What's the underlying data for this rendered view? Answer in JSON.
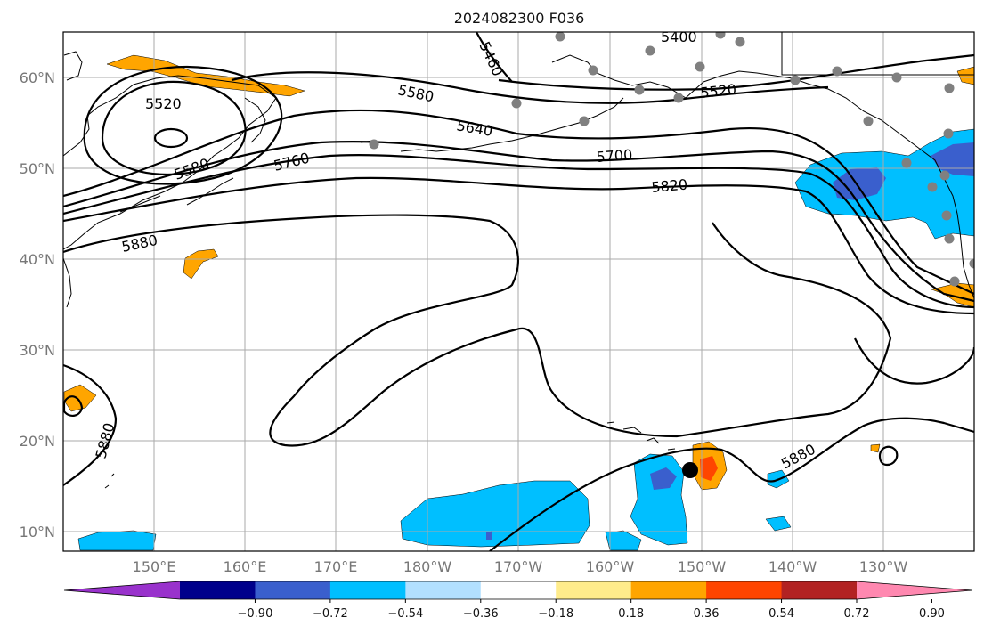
{
  "title": "2024082300 F036",
  "lat_labels": [
    "60°N",
    "50°N",
    "40°N",
    "30°N",
    "20°N",
    "10°N"
  ],
  "lon_labels": [
    "150°E",
    "160°E",
    "170°E",
    "180°W",
    "170°W",
    "160°W",
    "150°W",
    "140°W",
    "130°W"
  ],
  "contour_labels": [
    "5520",
    "5580",
    "5460",
    "5400",
    "5580",
    "5640",
    "5520",
    "5760",
    "5700",
    "5820",
    "5880",
    "5880",
    "5880"
  ],
  "colorbar": {
    "ticks": [
      "−0.90",
      "−0.72",
      "−0.54",
      "−0.36",
      "−0.18",
      "0.18",
      "0.36",
      "0.54",
      "0.72",
      "0.90"
    ],
    "colors": [
      "#9932cc",
      "#00008b",
      "#3a5fcd",
      "#00bfff",
      "#b2e0ff",
      "#ffffff",
      "#ffec8b",
      "#ffa500",
      "#ff4500",
      "#b22222",
      "#ff88b0"
    ]
  }
}
